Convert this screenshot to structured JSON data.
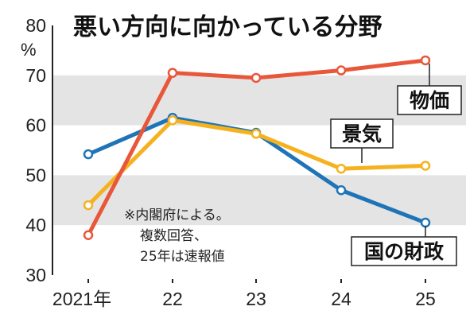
{
  "chart_data": {
    "type": "line",
    "title": "悪い方向に向かっている分野",
    "unit": "%",
    "x": [
      "2021年",
      "22",
      "23",
      "24",
      "25"
    ],
    "ylim": [
      30,
      80
    ],
    "yticks": [
      30,
      40,
      50,
      60,
      70,
      80
    ],
    "grid": "alternating horizontal bands",
    "series": [
      {
        "name": "物価",
        "color": "#e8573a",
        "values": [
          38,
          70.5,
          69.5,
          71,
          73
        ]
      },
      {
        "name": "景気",
        "color": "#f5b21e",
        "values": [
          44,
          61,
          58.3,
          51.3,
          51.9
        ]
      },
      {
        "name": "国の財政",
        "color": "#1f74b8",
        "values": [
          54.2,
          61.5,
          58.5,
          47,
          40.5
        ]
      }
    ],
    "note": [
      "※内閣府による。",
      "複数回答、",
      "25年は速報値"
    ]
  }
}
